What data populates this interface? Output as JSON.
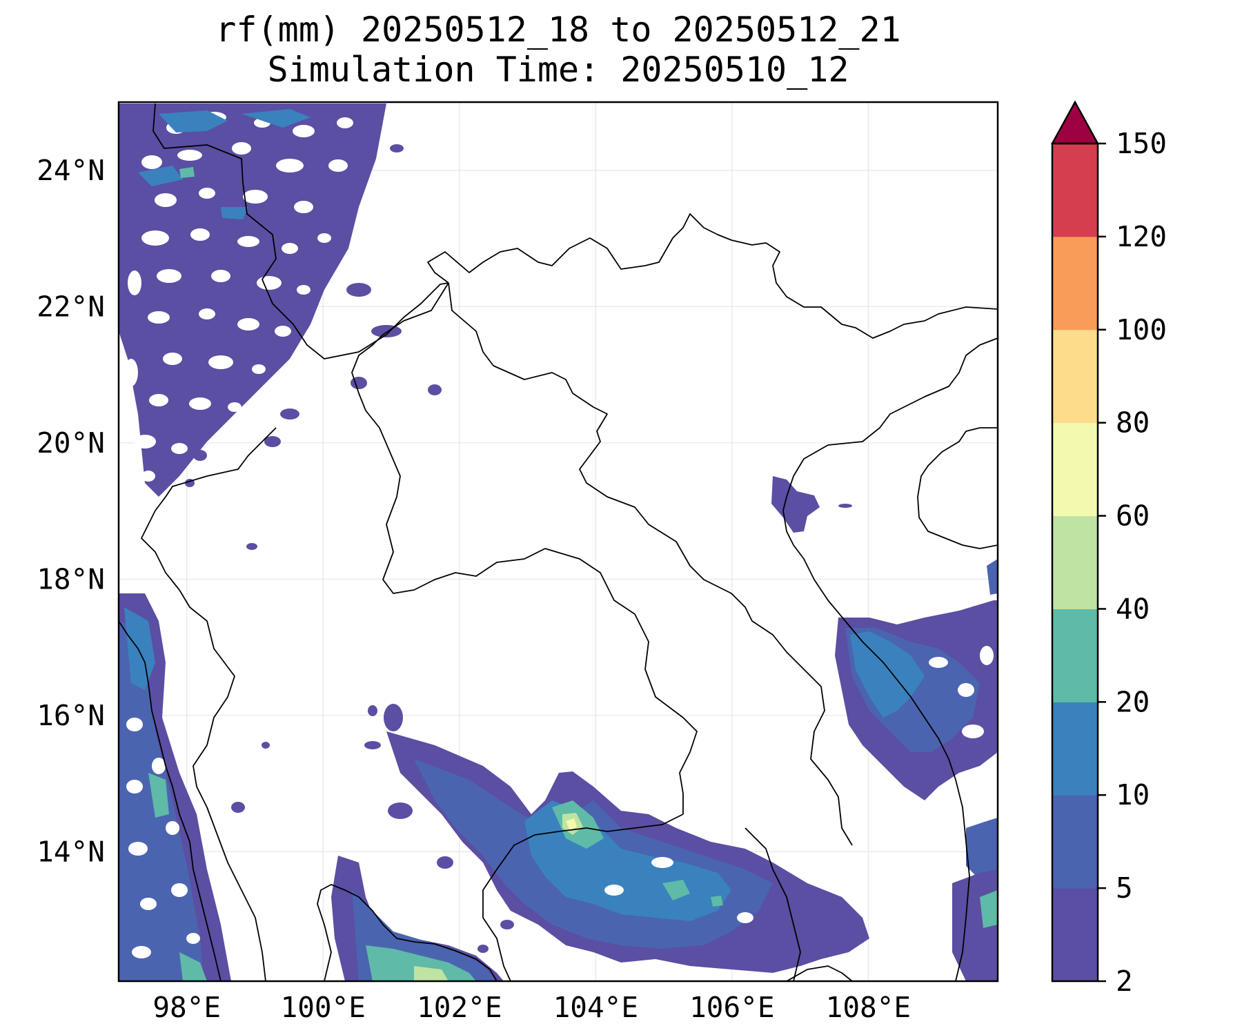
{
  "title": {
    "line1": "rf(mm) 20250512_18 to 20250512_21",
    "line2": "Simulation Time: 20250510_12"
  },
  "map": {
    "projection": "PlateCarree",
    "lon_range": [
      97.0,
      109.9
    ],
    "lat_range": [
      12.1,
      25.0
    ],
    "x_ticks": [
      {
        "value": 98,
        "label": "98°E"
      },
      {
        "value": 100,
        "label": "100°E"
      },
      {
        "value": 102,
        "label": "102°E"
      },
      {
        "value": 104,
        "label": "104°E"
      },
      {
        "value": 106,
        "label": "106°E"
      },
      {
        "value": 108,
        "label": "108°E"
      }
    ],
    "y_ticks": [
      {
        "value": 14,
        "label": "14°N"
      },
      {
        "value": 16,
        "label": "16°N"
      },
      {
        "value": 18,
        "label": "18°N"
      },
      {
        "value": 20,
        "label": "20°N"
      },
      {
        "value": 22,
        "label": "22°N"
      },
      {
        "value": 24,
        "label": "24°N"
      }
    ],
    "gridlines": true
  },
  "colorbar": {
    "levels": [
      2,
      5,
      10,
      20,
      40,
      60,
      80,
      100,
      120,
      150
    ],
    "colors": [
      "#5a4fa2",
      "#4b64b0",
      "#3a82bd",
      "#5fbaa8",
      "#bfe3a2",
      "#f4f9b0",
      "#fbdd8c",
      "#f99c5a",
      "#d53e4f"
    ],
    "extend_color": "#9e0142",
    "extend": "max",
    "labels": [
      "2",
      "5",
      "10",
      "20",
      "40",
      "60",
      "80",
      "100",
      "120",
      "150"
    ]
  },
  "colors": {
    "background": "#ffffff",
    "frame": "#000000",
    "grid": "#e6e6e6",
    "borders": "#000000"
  }
}
